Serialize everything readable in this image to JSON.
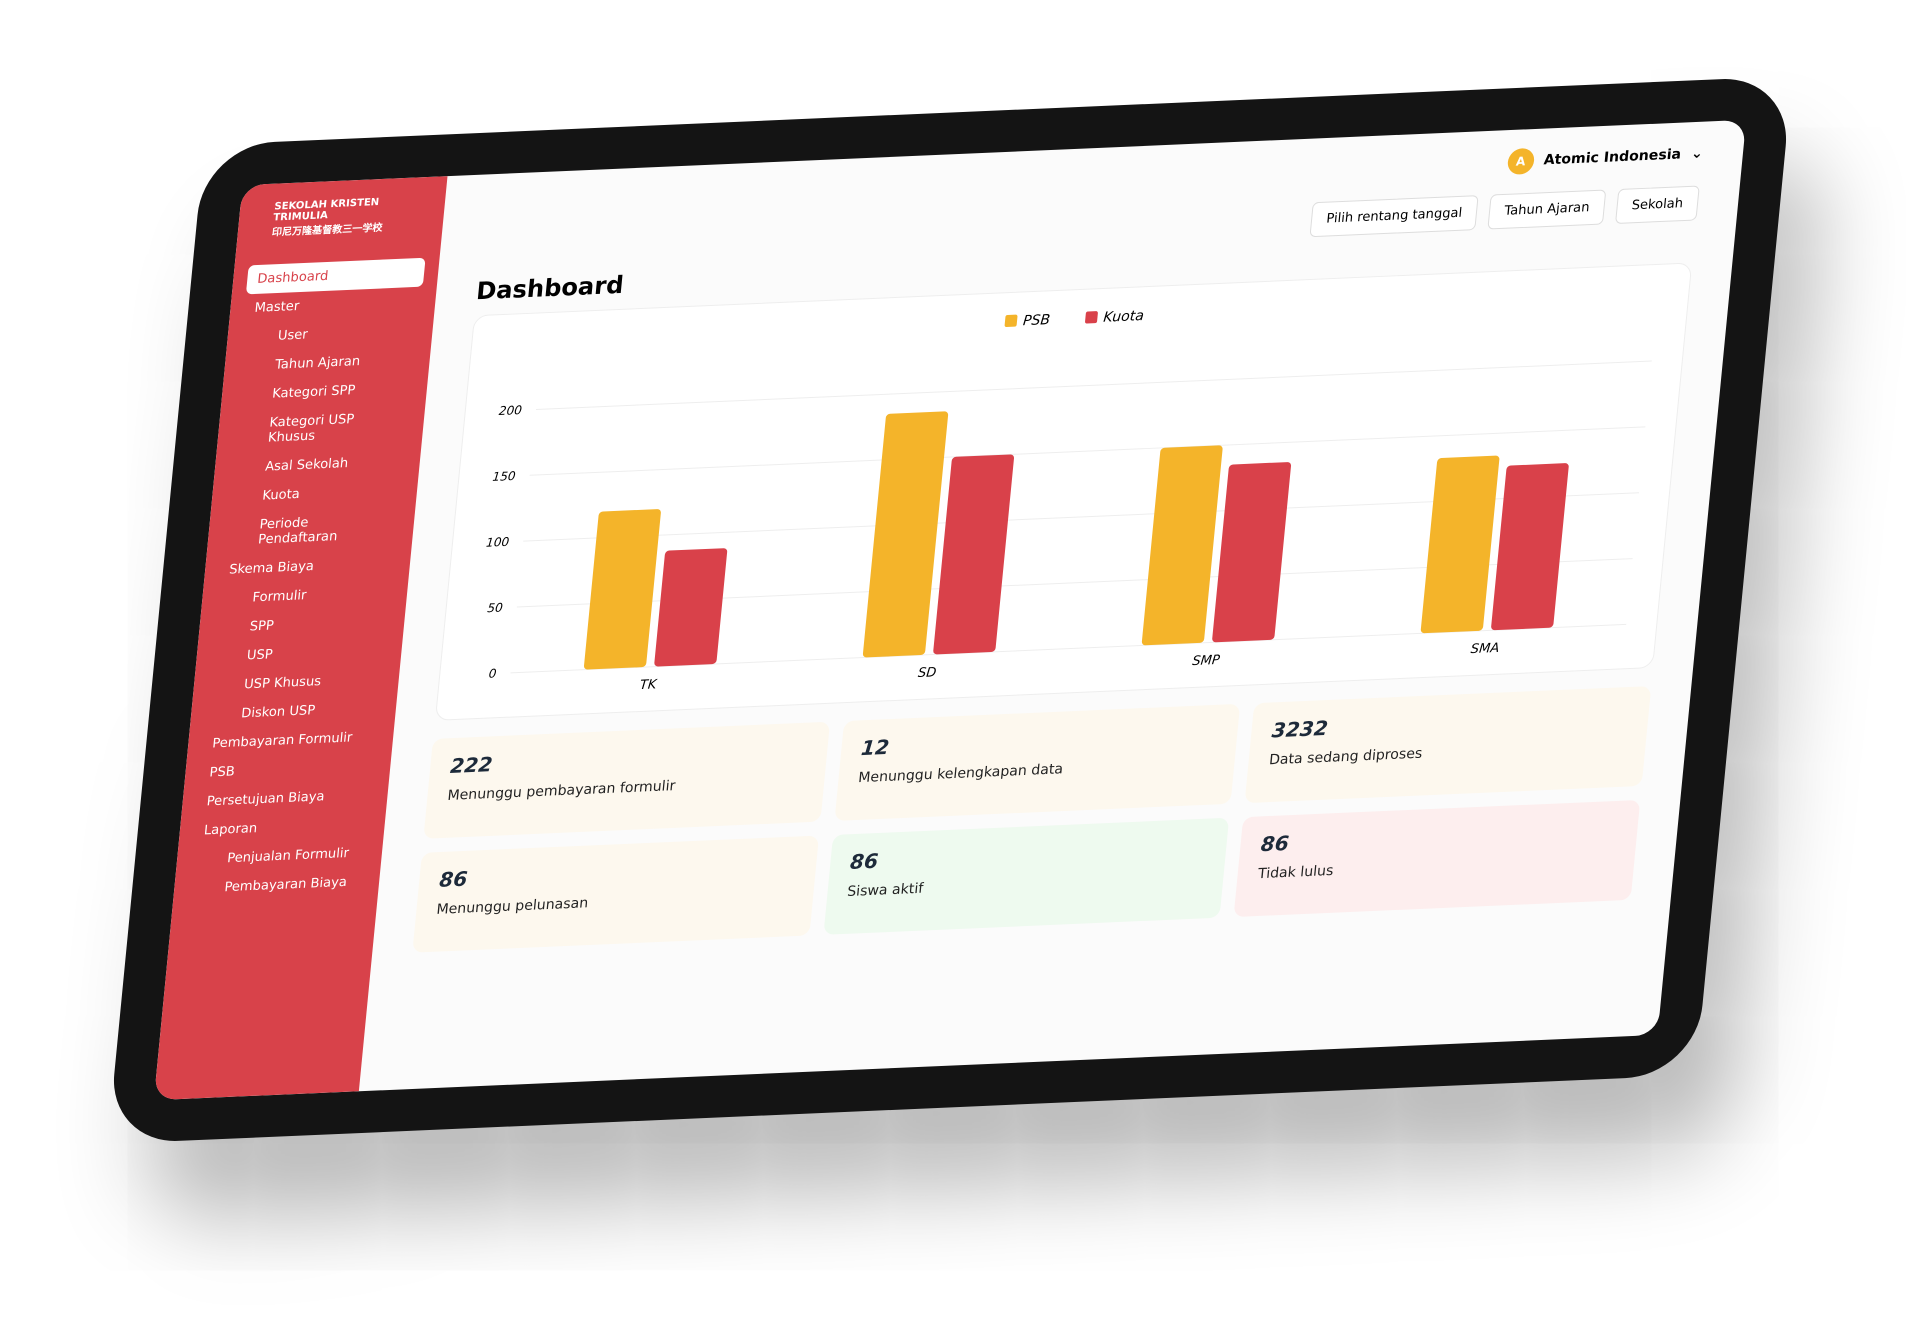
{
  "header": {
    "user": "Atomic Indonesia",
    "avatar": "A"
  },
  "filters": [
    "Pilih rentang tanggal",
    "Tahun Ajaran",
    "Sekolah"
  ],
  "sidebar": {
    "school": "SEKOLAH KRISTEN TRIMULIA",
    "school_sub": "印尼万隆基督教三一学校",
    "items": [
      {
        "label": "Dashboard",
        "active": true
      },
      {
        "label": "Master",
        "children": [
          "User",
          "Tahun Ajaran",
          "Kategori SPP",
          "Kategori USP Khusus",
          "Asal Sekolah",
          "Kuota",
          "Periode Pendaftaran"
        ]
      },
      {
        "label": "Skema Biaya",
        "children": [
          "Formulir",
          "SPP",
          "USP",
          "USP Khusus",
          "Diskon USP"
        ]
      },
      {
        "label": "Pembayaran Formulir"
      },
      {
        "label": "PSB"
      },
      {
        "label": "Persetujuan Biaya"
      },
      {
        "label": "Laporan",
        "children": [
          "Penjualan Formulir",
          "Pembayaran Biaya"
        ]
      }
    ]
  },
  "page_title": "Dashboard",
  "chart_data": {
    "type": "bar",
    "categories": [
      "TK",
      "SD",
      "SMP",
      "SMA"
    ],
    "series": [
      {
        "name": "PSB",
        "color": "#f4b42a",
        "values": [
          120,
          185,
          150,
          133
        ]
      },
      {
        "name": "Kuota",
        "color": "#d9414a",
        "values": [
          88,
          150,
          135,
          125
        ]
      }
    ],
    "ylim": [
      0,
      220
    ],
    "yticks": [
      0,
      50,
      100,
      150,
      200
    ],
    "grid": true,
    "legend": "top"
  },
  "cards": [
    {
      "value": "222",
      "label": "Menunggu pembayaran formulir",
      "color": "#fdf8ee"
    },
    {
      "value": "12",
      "label": "Menunggu kelengkapan data",
      "color": "#fdf8ee"
    },
    {
      "value": "3232",
      "label": "Data sedang diproses",
      "color": "#fdf8ee"
    },
    {
      "value": "86",
      "label": "Menunggu pelunasan",
      "color": "#fdf8ee"
    },
    {
      "value": "86",
      "label": "Siswa aktif",
      "color": "#eefaef"
    },
    {
      "value": "86",
      "label": "Tidak lulus",
      "color": "#fdeeee"
    }
  ]
}
